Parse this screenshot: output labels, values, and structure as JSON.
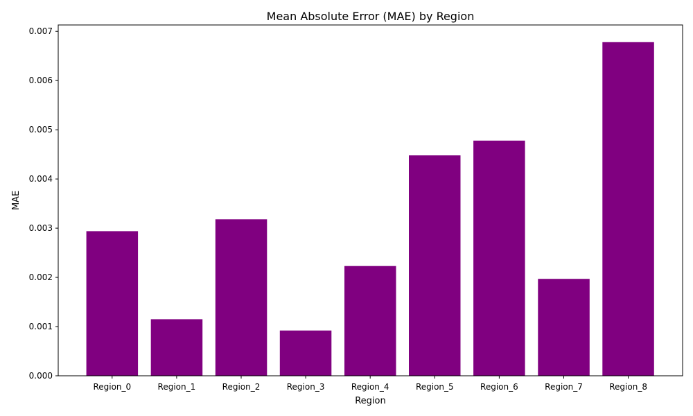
{
  "chart_data": {
    "type": "bar",
    "title": "Mean Absolute Error (MAE) by Region",
    "xlabel": "Region",
    "ylabel": "MAE",
    "categories": [
      "Region_0",
      "Region_1",
      "Region_2",
      "Region_3",
      "Region_4",
      "Region_5",
      "Region_6",
      "Region_7",
      "Region_8"
    ],
    "values": [
      0.00294,
      0.00115,
      0.00318,
      0.00092,
      0.00223,
      0.00448,
      0.00478,
      0.00197,
      0.00678
    ],
    "ylim": [
      0,
      0.00713
    ],
    "yticks": [
      "0.000",
      "0.001",
      "0.002",
      "0.003",
      "0.004",
      "0.005",
      "0.006",
      "0.007"
    ],
    "ytick_values": [
      0,
      0.001,
      0.002,
      0.003,
      0.004,
      0.005,
      0.006,
      0.007
    ],
    "grid": false,
    "bar_color": "#800080"
  }
}
